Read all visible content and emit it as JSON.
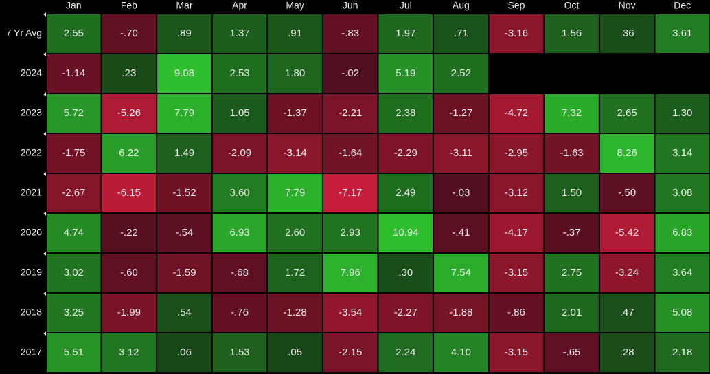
{
  "chart_data": {
    "type": "heatmap",
    "categories": [
      "Jan",
      "Feb",
      "Mar",
      "Apr",
      "May",
      "Jun",
      "Jul",
      "Aug",
      "Sep",
      "Oct",
      "Nov",
      "Dec"
    ],
    "series": [
      {
        "name": "7 Yr Avg",
        "values": [
          2.55,
          -0.7,
          0.89,
          1.37,
          0.91,
          -0.83,
          1.97,
          0.71,
          -3.16,
          1.56,
          0.36,
          3.61
        ],
        "value_labels": [
          "2.55",
          "-.70",
          ".89",
          "1.37",
          ".91",
          "-.83",
          "1.97",
          ".71",
          "-3.16",
          "1.56",
          ".36",
          "3.61"
        ]
      },
      {
        "name": "2024",
        "values": [
          -1.14,
          0.23,
          9.08,
          2.53,
          1.8,
          -0.02,
          5.19,
          2.52,
          null,
          null,
          null,
          null
        ],
        "value_labels": [
          "-1.14",
          ".23",
          "9.08",
          "2.53",
          "1.80",
          "-.02",
          "5.19",
          "2.52",
          null,
          null,
          null,
          null
        ]
      },
      {
        "name": "2023",
        "values": [
          5.72,
          -5.26,
          7.79,
          1.05,
          -1.37,
          -2.21,
          2.38,
          -1.27,
          -4.72,
          7.32,
          2.65,
          1.3
        ],
        "value_labels": [
          "5.72",
          "-5.26",
          "7.79",
          "1.05",
          "-1.37",
          "-2.21",
          "2.38",
          "-1.27",
          "-4.72",
          "7.32",
          "2.65",
          "1.30"
        ]
      },
      {
        "name": "2022",
        "values": [
          -1.75,
          6.22,
          1.49,
          -2.09,
          -3.14,
          -1.64,
          -2.29,
          -3.11,
          -2.95,
          -1.63,
          8.26,
          3.14
        ],
        "value_labels": [
          "-1.75",
          "6.22",
          "1.49",
          "-2.09",
          "-3.14",
          "-1.64",
          "-2.29",
          "-3.11",
          "-2.95",
          "-1.63",
          "8.26",
          "3.14"
        ]
      },
      {
        "name": "2021",
        "values": [
          -2.67,
          -6.15,
          -1.52,
          3.6,
          7.79,
          -7.17,
          2.49,
          -0.03,
          -3.12,
          1.5,
          -0.5,
          3.08
        ],
        "value_labels": [
          "-2.67",
          "-6.15",
          "-1.52",
          "3.60",
          "7.79",
          "-7.17",
          "2.49",
          "-.03",
          "-3.12",
          "1.50",
          "-.50",
          "3.08"
        ]
      },
      {
        "name": "2020",
        "values": [
          4.74,
          -0.22,
          -0.54,
          6.93,
          2.6,
          2.93,
          10.94,
          -0.41,
          -4.17,
          -0.37,
          -5.42,
          6.83
        ],
        "value_labels": [
          "4.74",
          "-.22",
          "-.54",
          "6.93",
          "2.60",
          "2.93",
          "10.94",
          "-.41",
          "-4.17",
          "-.37",
          "-5.42",
          "6.83"
        ]
      },
      {
        "name": "2019",
        "values": [
          3.02,
          -0.6,
          -1.59,
          -0.68,
          1.72,
          7.96,
          0.3,
          7.54,
          -3.15,
          2.75,
          -3.24,
          3.64
        ],
        "value_labels": [
          "3.02",
          "-.60",
          "-1.59",
          "-.68",
          "1.72",
          "7.96",
          ".30",
          "7.54",
          "-3.15",
          "2.75",
          "-3.24",
          "3.64"
        ]
      },
      {
        "name": "2018",
        "values": [
          3.25,
          -1.99,
          0.54,
          -0.76,
          -1.28,
          -3.54,
          -2.27,
          -1.88,
          -0.86,
          2.01,
          0.47,
          5.08
        ],
        "value_labels": [
          "3.25",
          "-1.99",
          ".54",
          "-.76",
          "-1.28",
          "-3.54",
          "-2.27",
          "-1.88",
          "-.86",
          "2.01",
          ".47",
          "5.08"
        ]
      },
      {
        "name": "2017",
        "values": [
          5.51,
          3.12,
          0.06,
          1.53,
          0.05,
          -2.15,
          2.24,
          4.1,
          -3.15,
          -0.65,
          0.28,
          2.18
        ],
        "value_labels": [
          "5.51",
          "3.12",
          ".06",
          "1.53",
          ".05",
          "-2.15",
          "2.24",
          "4.10",
          "-3.15",
          "-.65",
          ".28",
          "2.18"
        ]
      }
    ]
  }
}
